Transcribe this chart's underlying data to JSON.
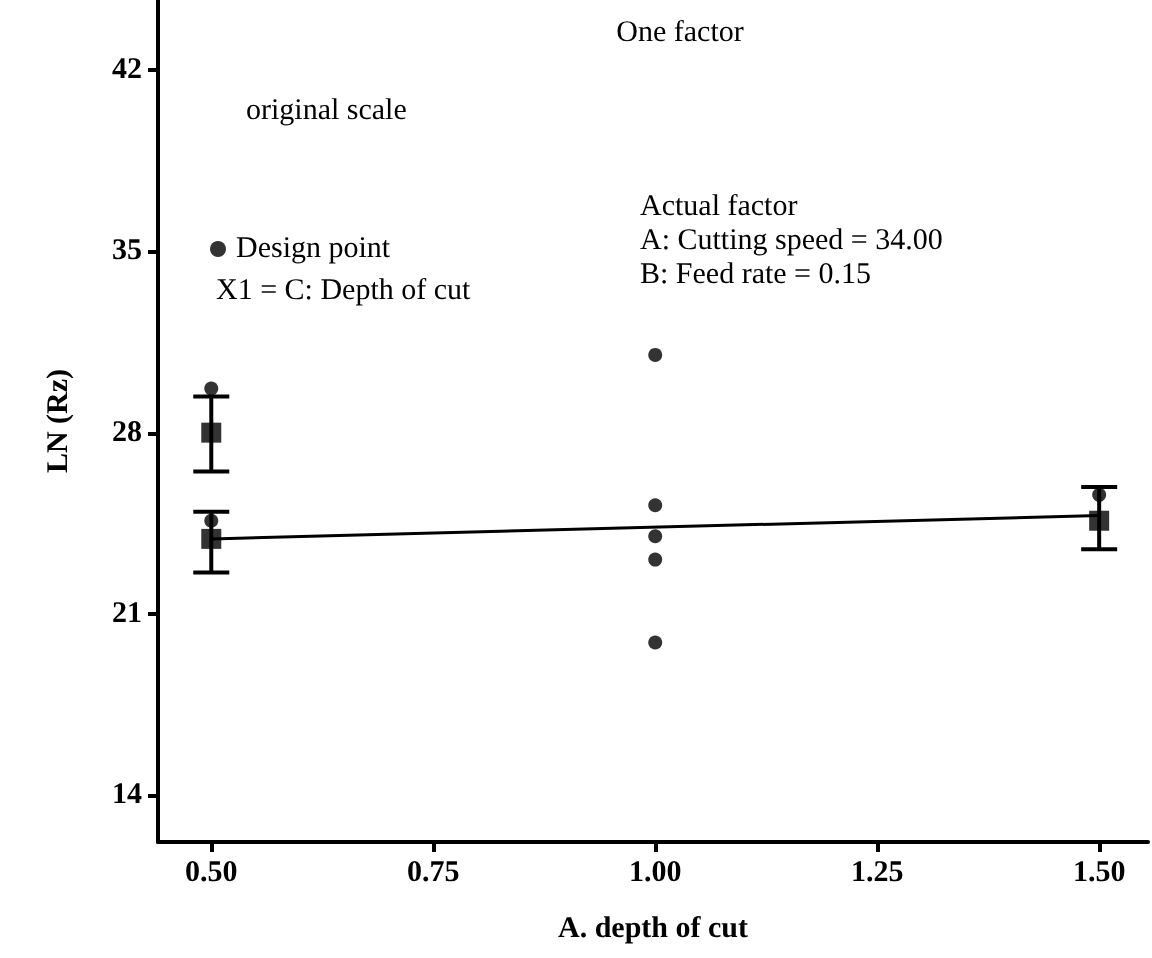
{
  "chart_data": {
    "type": "scatter",
    "title": "One factor",
    "xlabel": "A. depth of cut",
    "ylabel": "LN (Rz)",
    "annotations": [
      "original scale",
      "X1 = C: Depth of cut",
      "Actual factor",
      "A: Cutting speed = 34.00",
      "B: Feed rate = 0.15"
    ],
    "xlim": [
      0.44,
      1.555
    ],
    "ylim": [
      12.2,
      44.7
    ],
    "xticks": [
      {
        "value": 0.5,
        "label": "0.50"
      },
      {
        "value": 0.75,
        "label": "0.75"
      },
      {
        "value": 1,
        "label": "1.00"
      },
      {
        "value": 1.25,
        "label": "1.25"
      },
      {
        "value": 1.5,
        "label": "1.50"
      }
    ],
    "yticks": [
      14,
      21,
      28,
      35,
      42
    ],
    "grid": false,
    "legend": "top left",
    "marker": "circle",
    "series": [
      {
        "name": "Design point",
        "color": "#000000",
        "x": [
          0.5,
          0.5,
          1,
          1,
          1,
          1,
          1,
          1.5
        ],
        "values": [
          29.7,
          24.6,
          31.0,
          25.2,
          24.0,
          23.1,
          19.9,
          25.6
        ]
      },
      {
        "marker": "square",
        "color": "#000000",
        "x": [
          0.5,
          0.5,
          1.5
        ],
        "values": [
          28.0,
          23.9,
          24.6
        ],
        "errors": [
          [
            26.5,
            29.4
          ],
          [
            22.6,
            24.95
          ],
          [
            23.5,
            25.9
          ]
        ]
      },
      {
        "type": "line",
        "marker": "none",
        "color": "#000000",
        "x": [
          0.5,
          1.5
        ],
        "values": [
          23.9,
          24.8
        ]
      }
    ]
  }
}
